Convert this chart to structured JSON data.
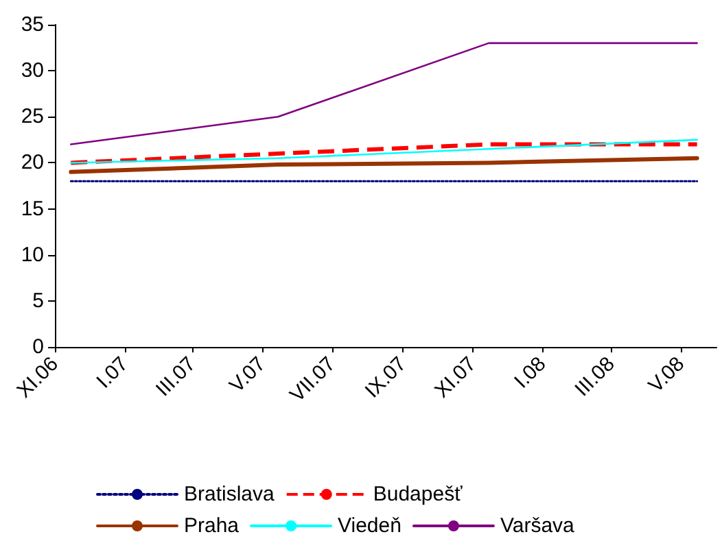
{
  "chart_data": {
    "type": "line",
    "x": [
      "2006-11-15",
      "2007-05-15",
      "2007-11-15",
      "2008-05-15"
    ],
    "series": [
      {
        "name": "Bratislava",
        "color": "#000080",
        "line_style": "dotted",
        "values": [
          18,
          18,
          18,
          18
        ]
      },
      {
        "name": "Budapešť",
        "color": "#ff0000",
        "line_style": "dashed",
        "values": [
          20,
          21,
          22,
          22
        ]
      },
      {
        "name": "Praha",
        "color": "#993300",
        "line_style": "solid",
        "values": [
          19,
          19.8,
          20,
          20.5
        ]
      },
      {
        "name": "Viedeň",
        "color": "#00ffff",
        "line_style": "solid",
        "values": [
          20,
          20.5,
          21.5,
          22.5
        ]
      },
      {
        "name": "Varšava",
        "color": "#800080",
        "line_style": "solid",
        "values": [
          22,
          25,
          33,
          33
        ]
      }
    ],
    "xlim": [
      "2006-11-01",
      "2008-06-01"
    ],
    "xticks": [
      {
        "value": "2006-11-01",
        "label": "XI.06"
      },
      {
        "value": "2007-01-01",
        "label": "I.07"
      },
      {
        "value": "2007-03-01",
        "label": "III.07"
      },
      {
        "value": "2007-05-01",
        "label": "V.07"
      },
      {
        "value": "2007-07-01",
        "label": "VII.07"
      },
      {
        "value": "2007-09-01",
        "label": "IX.07"
      },
      {
        "value": "2007-11-01",
        "label": "XI.07"
      },
      {
        "value": "2008-01-01",
        "label": "I.08"
      },
      {
        "value": "2008-03-01",
        "label": "III.08"
      },
      {
        "value": "2008-05-01",
        "label": "V.08"
      }
    ],
    "ylim": [
      0,
      35
    ],
    "yticks": [
      0,
      5,
      10,
      15,
      20,
      25,
      30,
      35
    ],
    "grid": false,
    "legend": "bottom",
    "marker": "none"
  }
}
